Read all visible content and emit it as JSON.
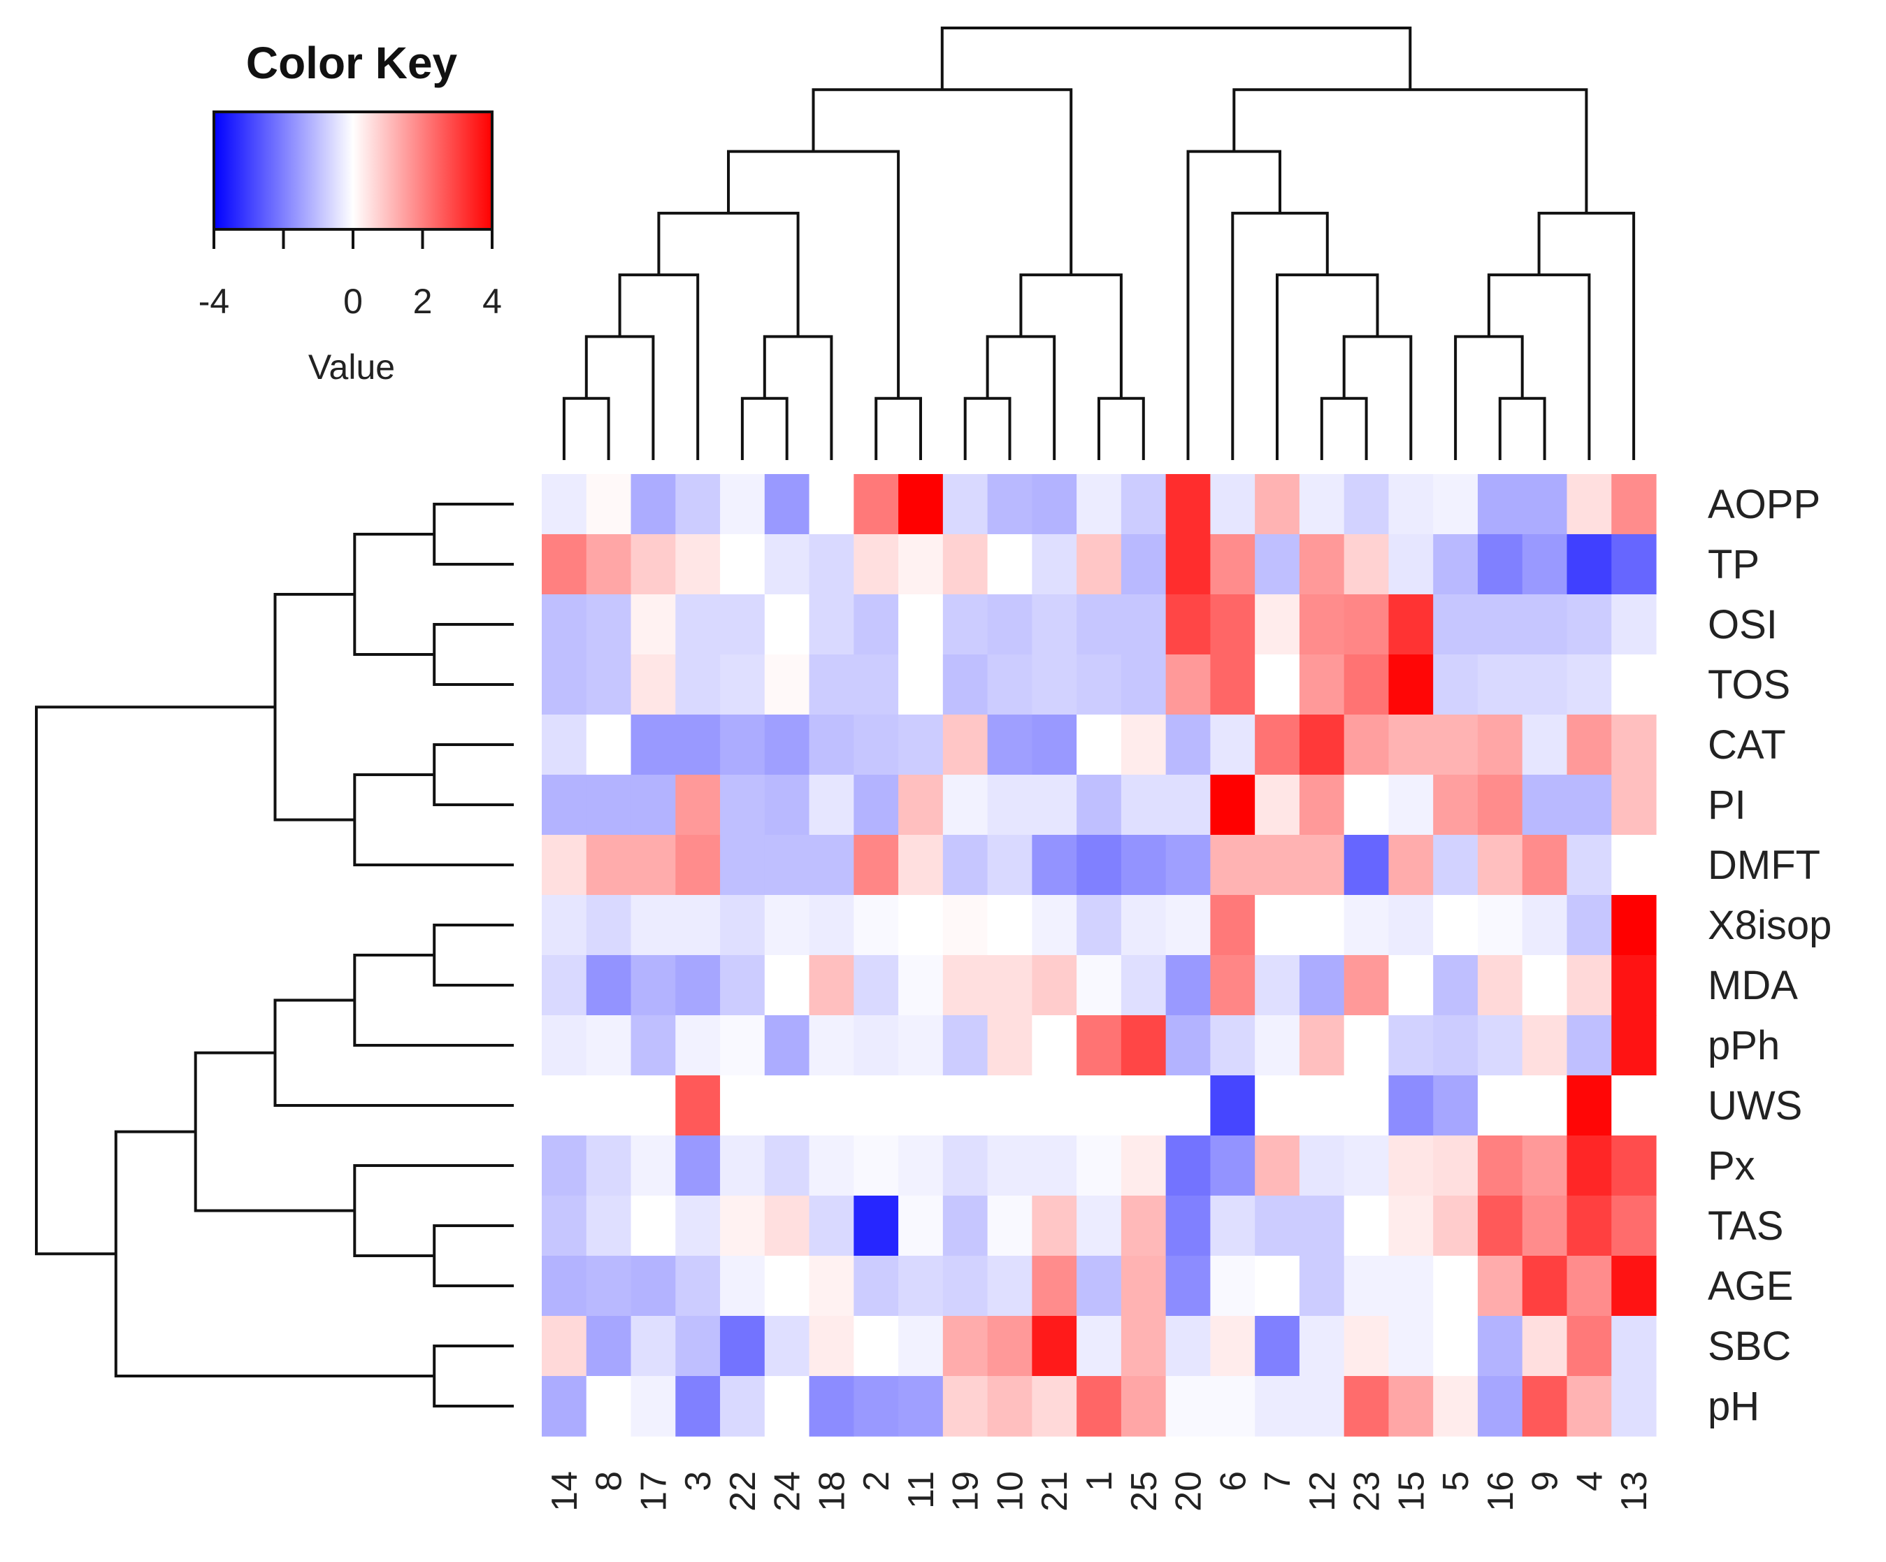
{
  "chart_data": {
    "type": "heatmap",
    "title": "",
    "xlabel": "",
    "ylabel": "",
    "color_key": {
      "title": "Color Key",
      "label": "Value",
      "ticks": [
        -4,
        0,
        2,
        4
      ],
      "tick_labels": [
        "-4",
        "0",
        "2",
        "4"
      ],
      "range": [
        -4,
        4
      ],
      "low_color": "#0000ff",
      "mid_color": "#ffffff",
      "high_color": "#ff0000"
    },
    "columns": [
      "14",
      "8",
      "17",
      "3",
      "22",
      "24",
      "18",
      "2",
      "11",
      "19",
      "10",
      "21",
      "1",
      "25",
      "20",
      "6",
      "7",
      "12",
      "23",
      "15",
      "5",
      "16",
      "9",
      "4",
      "13"
    ],
    "rows": [
      "AOPP",
      "TP",
      "OSI",
      "TOS",
      "CAT",
      "PI",
      "DMFT",
      "X8isop",
      "MDA",
      "pPh",
      "UWS",
      "Px",
      "TAS",
      "AGE",
      "SBC",
      "pH"
    ],
    "values": [
      [
        -0.3,
        0.1,
        -1.3,
        -0.8,
        -0.2,
        -1.6,
        0.0,
        2.1,
        4.0,
        -0.6,
        -1.1,
        -1.2,
        -0.3,
        -0.8,
        3.3,
        -0.4,
        1.2,
        -0.3,
        -0.7,
        -0.3,
        -0.2,
        -1.3,
        -1.3,
        0.5,
        1.8
      ],
      [
        2.0,
        1.4,
        0.8,
        0.4,
        0.0,
        -0.4,
        -0.6,
        0.5,
        0.2,
        0.7,
        0.0,
        -0.5,
        0.9,
        -1.1,
        3.3,
        1.8,
        -1.0,
        1.6,
        0.7,
        -0.4,
        -1.1,
        -2.0,
        -1.6,
        -3.0,
        -2.4
      ],
      [
        -1.0,
        -0.9,
        0.2,
        -0.6,
        -0.6,
        0.0,
        -0.6,
        -0.9,
        0.0,
        -0.8,
        -0.9,
        -0.7,
        -0.9,
        -0.9,
        2.9,
        2.4,
        0.3,
        1.8,
        1.9,
        3.2,
        -0.9,
        -0.9,
        -0.9,
        -0.8,
        -0.4
      ],
      [
        -1.0,
        -0.9,
        0.4,
        -0.6,
        -0.5,
        0.1,
        -0.8,
        -0.8,
        0.0,
        -1.0,
        -0.8,
        -0.7,
        -0.8,
        -0.9,
        1.6,
        2.4,
        0.0,
        1.6,
        2.2,
        3.9,
        -0.7,
        -0.6,
        -0.6,
        -0.5,
        0.0
      ],
      [
        -0.5,
        0.0,
        -1.6,
        -1.6,
        -1.3,
        -1.5,
        -1.0,
        -0.9,
        -0.8,
        0.9,
        -1.5,
        -1.6,
        0.0,
        0.3,
        -1.1,
        -0.4,
        2.2,
        3.1,
        1.5,
        1.2,
        1.2,
        1.4,
        -0.4,
        1.6,
        1.0
      ],
      [
        -1.2,
        -1.2,
        -1.2,
        1.6,
        -1.0,
        -1.1,
        -0.4,
        -1.2,
        1.0,
        -0.2,
        -0.4,
        -0.4,
        -1.0,
        -0.5,
        -0.5,
        4.0,
        0.4,
        1.6,
        0.0,
        -0.2,
        1.5,
        1.8,
        -1.1,
        -1.1,
        1.0
      ],
      [
        0.5,
        1.3,
        1.3,
        1.8,
        -1.0,
        -1.0,
        -1.0,
        1.9,
        0.5,
        -0.9,
        -0.6,
        -1.7,
        -2.0,
        -1.7,
        -1.5,
        1.2,
        1.2,
        1.2,
        -2.4,
        1.3,
        -0.7,
        1.0,
        1.8,
        -0.6,
        0.0
      ],
      [
        -0.4,
        -0.6,
        -0.3,
        -0.3,
        -0.5,
        -0.2,
        -0.3,
        -0.1,
        0.0,
        0.1,
        0.0,
        -0.2,
        -0.7,
        -0.3,
        -0.2,
        2.1,
        0.0,
        0.0,
        -0.2,
        -0.3,
        0.0,
        -0.1,
        -0.3,
        -0.9,
        4.0
      ],
      [
        -0.6,
        -1.7,
        -1.2,
        -1.4,
        -0.8,
        0.0,
        1.0,
        -0.6,
        -0.1,
        0.5,
        0.5,
        0.8,
        -0.1,
        -0.5,
        -1.6,
        1.9,
        -0.5,
        -1.3,
        1.6,
        0.0,
        -1.0,
        0.6,
        0.0,
        0.6,
        3.7
      ],
      [
        -0.3,
        -0.2,
        -1.0,
        -0.2,
        -0.1,
        -1.3,
        -0.2,
        -0.3,
        -0.2,
        -0.8,
        0.5,
        0.0,
        2.2,
        2.9,
        -1.2,
        -0.6,
        -0.2,
        1.0,
        0.0,
        -0.7,
        -0.8,
        -0.6,
        0.5,
        -1.0,
        3.7
      ],
      [
        0.0,
        0.0,
        0.0,
        2.6,
        0.0,
        0.0,
        0.0,
        0.0,
        0.0,
        0.0,
        0.0,
        0.0,
        0.0,
        0.0,
        0.0,
        -2.9,
        0.0,
        0.0,
        0.0,
        -1.8,
        -1.4,
        0.0,
        0.0,
        3.9,
        0.0
      ],
      [
        -1.0,
        -0.6,
        -0.2,
        -1.6,
        -0.3,
        -0.6,
        -0.2,
        -0.1,
        -0.2,
        -0.5,
        -0.3,
        -0.3,
        -0.1,
        0.3,
        -2.2,
        -1.7,
        1.1,
        -0.4,
        -0.3,
        0.4,
        0.5,
        2.0,
        1.6,
        3.4,
        2.8
      ],
      [
        -0.9,
        -0.5,
        0.0,
        -0.4,
        0.2,
        0.5,
        -0.6,
        -3.4,
        -0.1,
        -0.9,
        -0.1,
        0.9,
        -0.3,
        1.1,
        -2.0,
        -0.5,
        -0.8,
        -0.8,
        0.0,
        0.3,
        0.8,
        2.6,
        1.8,
        3.0,
        2.3
      ],
      [
        -1.2,
        -1.1,
        -1.2,
        -0.8,
        -0.2,
        0.0,
        0.2,
        -0.8,
        -0.6,
        -0.7,
        -0.5,
        1.8,
        -1.0,
        1.2,
        -1.8,
        -0.1,
        0.0,
        -0.8,
        -0.2,
        -0.2,
        0.0,
        1.3,
        3.0,
        1.8,
        3.7
      ],
      [
        0.6,
        -1.4,
        -0.5,
        -1.0,
        -2.2,
        -0.5,
        0.3,
        0.0,
        -0.2,
        1.3,
        1.6,
        3.6,
        -0.3,
        1.2,
        -0.4,
        0.3,
        -2.0,
        -0.3,
        0.3,
        -0.2,
        0.0,
        -1.2,
        0.5,
        2.1,
        -0.5
      ],
      [
        -1.3,
        0.0,
        -0.2,
        -2.0,
        -0.6,
        0.0,
        -1.8,
        -1.6,
        -1.5,
        0.7,
        1.0,
        0.6,
        2.4,
        1.4,
        -0.1,
        -0.1,
        -0.3,
        -0.3,
        2.3,
        1.4,
        0.3,
        -1.4,
        2.6,
        1.2,
        -0.5
      ]
    ],
    "column_dendrogram": [
      [
        0,
        1
      ],
      [
        25,
        2
      ],
      [
        26,
        3
      ],
      [
        4,
        5
      ],
      [
        28,
        6
      ],
      [
        27,
        29
      ],
      [
        7,
        8
      ],
      [
        30,
        31
      ],
      [
        9,
        10
      ],
      [
        33,
        11
      ],
      [
        12,
        13
      ],
      [
        34,
        35
      ],
      [
        32,
        36
      ],
      [
        17,
        18
      ],
      [
        38,
        19
      ],
      [
        39,
        16
      ],
      [
        40,
        15
      ],
      [
        41,
        14
      ],
      [
        21,
        22
      ],
      [
        43,
        20
      ],
      [
        44,
        23
      ],
      [
        45,
        24
      ],
      [
        42,
        46
      ],
      [
        37,
        47
      ]
    ],
    "row_dendrogram": [
      [
        2,
        3
      ],
      [
        0,
        1
      ],
      [
        17,
        16
      ],
      [
        4,
        5
      ],
      [
        19,
        6
      ],
      [
        18,
        20
      ],
      [
        7,
        8
      ],
      [
        22,
        9
      ],
      [
        23,
        10
      ],
      [
        12,
        13
      ],
      [
        11,
        25
      ],
      [
        24,
        26
      ],
      [
        14,
        15
      ],
      [
        27,
        28
      ],
      [
        21,
        29
      ]
    ]
  }
}
